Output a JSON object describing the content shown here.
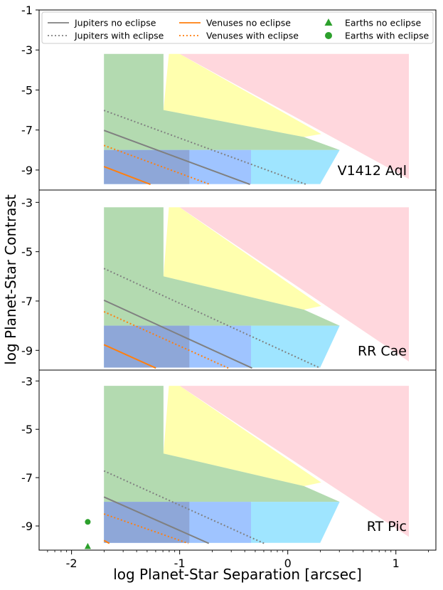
{
  "chart_data": {
    "type": "line",
    "xlabel": "log Planet-Star Separation [arcsec]",
    "ylabel": "log Planet-Star Contrast",
    "xlim": [
      -2.3,
      1.37
    ],
    "x_ticks": [
      -2,
      -1,
      0,
      1
    ],
    "x_tick_labels": [
      "-2",
      "-1",
      "0",
      "1"
    ],
    "top_y_ticks": [
      -1,
      -3,
      -5,
      -7,
      -9
    ],
    "top_y_tick_labels": [
      "-1",
      "-3",
      "-5",
      "-7",
      "-9"
    ],
    "y_ticks": [
      -3,
      -5,
      -7,
      -9
    ],
    "y_tick_labels": [
      "-3",
      "-5",
      "-7",
      "-9"
    ],
    "legend": {
      "placement": "top",
      "entries": [
        {
          "label": "Jupiters no eclipse",
          "marker": "solid-line",
          "color": "#808080"
        },
        {
          "label": "Jupiters with eclipse",
          "marker": "dotted-line",
          "color": "#808080"
        },
        {
          "label": "Venuses no eclipse",
          "marker": "solid-line",
          "color": "#ff7f0e"
        },
        {
          "label": "Venuses with eclipse",
          "marker": "dotted-line",
          "color": "#ff7f0e"
        },
        {
          "label": "Earths no eclipse",
          "marker": "triangle",
          "color": "#2ca02c"
        },
        {
          "label": "Earths with eclipse",
          "marker": "circle",
          "color": "#2ca02c"
        }
      ]
    },
    "regions": [
      {
        "name": "pink-region",
        "color": "#ffb6c1",
        "opacity": 0.55,
        "points": [
          [
            -1.0,
            -3.2
          ],
          [
            1.12,
            -3.2
          ],
          [
            1.12,
            -9.45
          ]
        ]
      },
      {
        "name": "yellow-region",
        "color": "#ffff8c",
        "opacity": 0.7,
        "points": [
          [
            -1.1,
            -3.2
          ],
          [
            -1.0,
            -3.2
          ],
          [
            0.31,
            -7.2
          ],
          [
            0.15,
            -7.35
          ],
          [
            -1.15,
            -6.0
          ]
        ]
      },
      {
        "name": "green-region",
        "color": "#8fc98a",
        "opacity": 0.68,
        "points": [
          [
            -1.7,
            -3.2
          ],
          [
            -1.15,
            -3.2
          ],
          [
            -1.15,
            -6.0
          ],
          [
            0.15,
            -7.35
          ],
          [
            0.48,
            -8.0
          ],
          [
            -1.7,
            -8.0
          ]
        ]
      },
      {
        "name": "cyan-region",
        "color": "#7fdcff",
        "opacity": 0.75,
        "points": [
          [
            -1.7,
            -8.0
          ],
          [
            0.48,
            -8.0
          ],
          [
            0.3,
            -9.7
          ],
          [
            -1.7,
            -9.7
          ]
        ]
      },
      {
        "name": "blue-region",
        "color": "#9fb7ff",
        "opacity": 0.7,
        "points": [
          [
            -1.7,
            -8.0
          ],
          [
            -0.34,
            -8.0
          ],
          [
            -0.34,
            -9.7
          ],
          [
            -1.7,
            -9.7
          ]
        ]
      },
      {
        "name": "steel-region",
        "color": "#7f8fb8",
        "opacity": 0.55,
        "points": [
          [
            -1.7,
            -8.0
          ],
          [
            -0.91,
            -8.0
          ],
          [
            -0.91,
            -9.7
          ],
          [
            -1.7,
            -9.7
          ]
        ]
      }
    ],
    "panels": [
      {
        "name": "V1412 Aql",
        "ylim": [
          -10.0,
          -1.0
        ],
        "series": [
          {
            "name": "Jupiters no eclipse",
            "x": [
              -1.7,
              -0.35
            ],
            "y": [
              -7.02,
              -9.72
            ]
          },
          {
            "name": "Jupiters with eclipse",
            "x": [
              -1.7,
              0.17
            ],
            "y": [
              -6.02,
              -9.72
            ]
          },
          {
            "name": "Venuses no eclipse",
            "x": [
              -1.7,
              -1.27
            ],
            "y": [
              -8.83,
              -9.72
            ]
          },
          {
            "name": "Venuses with eclipse",
            "x": [
              -1.7,
              -0.72
            ],
            "y": [
              -7.77,
              -9.72
            ]
          }
        ]
      },
      {
        "name": "RR Cae",
        "ylim": [
          -9.8,
          -2.5
        ],
        "series": [
          {
            "name": "Jupiters no eclipse",
            "x": [
              -1.7,
              -0.33
            ],
            "y": [
              -6.97,
              -9.72
            ]
          },
          {
            "name": "Jupiters with eclipse",
            "x": [
              -1.7,
              0.3
            ],
            "y": [
              -5.68,
              -9.72
            ]
          },
          {
            "name": "Venuses no eclipse",
            "x": [
              -1.7,
              -1.22
            ],
            "y": [
              -8.77,
              -9.72
            ]
          },
          {
            "name": "Venuses with eclipse",
            "x": [
              -1.7,
              -0.55
            ],
            "y": [
              -7.43,
              -9.72
            ]
          }
        ]
      },
      {
        "name": "RT Pic",
        "ylim": [
          -10.0,
          -2.55
        ],
        "series": [
          {
            "name": "Jupiters no eclipse",
            "x": [
              -1.7,
              -0.73
            ],
            "y": [
              -7.8,
              -9.72
            ]
          },
          {
            "name": "Jupiters with eclipse",
            "x": [
              -1.7,
              -0.22
            ],
            "y": [
              -6.72,
              -9.72
            ]
          },
          {
            "name": "Venuses no eclipse",
            "x": [
              -1.7,
              -1.65
            ],
            "y": [
              -9.6,
              -9.72
            ]
          },
          {
            "name": "Venuses with eclipse",
            "x": [
              -1.7,
              -0.92
            ],
            "y": [
              -8.5,
              -9.72
            ]
          }
        ],
        "markers": [
          {
            "name": "Earths with eclipse",
            "shape": "circle",
            "x": -1.85,
            "y": -8.83
          },
          {
            "name": "Earths no eclipse",
            "shape": "triangle",
            "x": -1.85,
            "y": -9.85
          }
        ]
      }
    ]
  }
}
